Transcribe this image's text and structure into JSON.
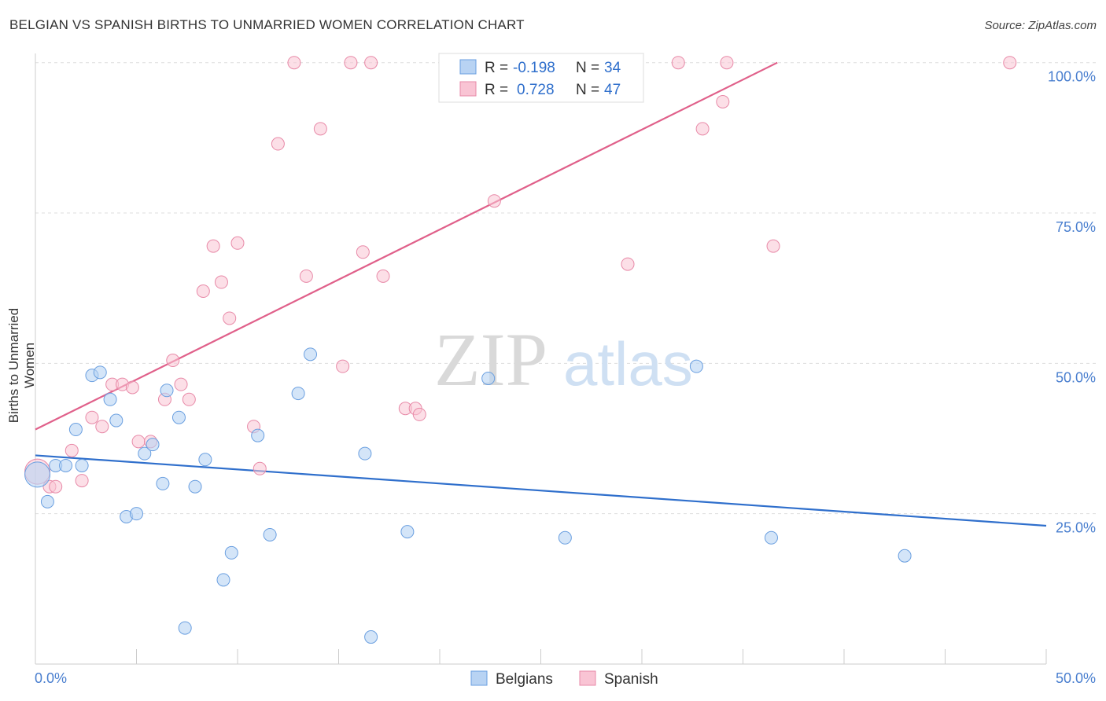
{
  "header": {
    "title": "BELGIAN VS SPANISH BIRTHS TO UNMARRIED WOMEN CORRELATION CHART",
    "source": "Source: ZipAtlas.com"
  },
  "watermark": {
    "zip": "ZIP",
    "atlas": "atlas"
  },
  "stats": [
    {
      "r_label": "R =",
      "r_value": "-0.198",
      "n_label": "N =",
      "n_value": "34"
    },
    {
      "r_label": "R =",
      "r_value": "0.728",
      "n_label": "N =",
      "n_value": "47"
    }
  ],
  "legend": {
    "belgians": "Belgians",
    "spanish": "Spanish"
  },
  "colors": {
    "belgians_fill": "#b8d3f3",
    "belgians_stroke": "#6a9fe0",
    "belgians_line": "#2f6fcc",
    "spanish_fill": "#f9c4d4",
    "spanish_stroke": "#e88aa8",
    "spanish_line": "#e0608a",
    "value_text": "#2f6fcc",
    "grid": "#dddddd"
  },
  "chart_data": {
    "type": "scatter",
    "title": "BELGIAN VS SPANISH BIRTHS TO UNMARRIED WOMEN CORRELATION CHART",
    "xlabel": "",
    "ylabel": "Births to Unmarried Women",
    "xlim": [
      0,
      50
    ],
    "ylim": [
      0,
      102
    ],
    "x_tick_labels": [
      "0.0%",
      "50.0%"
    ],
    "y_tick_labels": [
      "25.0%",
      "50.0%",
      "75.0%",
      "100.0%"
    ],
    "y_ticks": [
      25,
      50,
      75,
      100
    ],
    "grid": true,
    "legend_position": "bottom-center",
    "series": [
      {
        "name": "Belgians",
        "r": -0.198,
        "n": 34,
        "trend": [
          [
            0,
            34.7
          ],
          [
            50,
            23.0
          ]
        ],
        "points": [
          [
            0.1,
            31.5
          ],
          [
            0.6,
            27.0
          ],
          [
            1.0,
            33.0
          ],
          [
            1.5,
            33.0
          ],
          [
            2.0,
            39.0
          ],
          [
            2.3,
            33.0
          ],
          [
            2.8,
            48.0
          ],
          [
            3.2,
            48.5
          ],
          [
            3.7,
            44.0
          ],
          [
            4.0,
            40.5
          ],
          [
            4.5,
            24.5
          ],
          [
            5.0,
            25.0
          ],
          [
            5.4,
            35.0
          ],
          [
            5.8,
            36.5
          ],
          [
            6.3,
            30.0
          ],
          [
            6.5,
            45.5
          ],
          [
            7.1,
            41.0
          ],
          [
            7.4,
            6.0
          ],
          [
            7.9,
            29.5
          ],
          [
            8.4,
            34.0
          ],
          [
            9.3,
            14.0
          ],
          [
            9.7,
            18.5
          ],
          [
            11.0,
            38.0
          ],
          [
            11.6,
            21.5
          ],
          [
            13.0,
            45.0
          ],
          [
            13.6,
            51.5
          ],
          [
            16.3,
            35.0
          ],
          [
            16.6,
            4.5
          ],
          [
            18.4,
            22.0
          ],
          [
            22.4,
            47.5
          ],
          [
            26.2,
            21.0
          ],
          [
            32.7,
            49.5
          ],
          [
            36.4,
            21.0
          ],
          [
            43.0,
            18.0
          ]
        ]
      },
      {
        "name": "Spanish",
        "r": 0.728,
        "n": 47,
        "trend": [
          [
            0,
            39.0
          ],
          [
            36.7,
            100.0
          ]
        ],
        "points": [
          [
            0.1,
            32.0
          ],
          [
            0.7,
            29.5
          ],
          [
            1.0,
            29.5
          ],
          [
            1.8,
            35.5
          ],
          [
            2.3,
            30.5
          ],
          [
            2.8,
            41.0
          ],
          [
            3.3,
            39.5
          ],
          [
            3.8,
            46.5
          ],
          [
            4.3,
            46.5
          ],
          [
            4.8,
            46.0
          ],
          [
            5.1,
            37.0
          ],
          [
            5.7,
            37.0
          ],
          [
            6.4,
            44.0
          ],
          [
            6.8,
            50.5
          ],
          [
            7.2,
            46.5
          ],
          [
            7.6,
            44.0
          ],
          [
            8.3,
            62.0
          ],
          [
            8.8,
            69.5
          ],
          [
            9.2,
            63.5
          ],
          [
            9.6,
            57.5
          ],
          [
            10.0,
            70.0
          ],
          [
            10.8,
            39.5
          ],
          [
            11.1,
            32.5
          ],
          [
            12.0,
            86.5
          ],
          [
            12.8,
            100.0
          ],
          [
            13.4,
            64.5
          ],
          [
            14.1,
            89.0
          ],
          [
            15.2,
            49.5
          ],
          [
            15.6,
            100.0
          ],
          [
            16.2,
            68.5
          ],
          [
            16.6,
            100.0
          ],
          [
            17.2,
            64.5
          ],
          [
            18.3,
            42.5
          ],
          [
            18.8,
            42.5
          ],
          [
            19.0,
            41.5
          ],
          [
            22.7,
            77.0
          ],
          [
            24.9,
            100.0
          ],
          [
            25.5,
            100.0
          ],
          [
            26.0,
            100.0
          ],
          [
            29.3,
            66.5
          ],
          [
            29.7,
            100.0
          ],
          [
            31.8,
            100.0
          ],
          [
            33.0,
            89.0
          ],
          [
            34.0,
            93.5
          ],
          [
            34.2,
            100.0
          ],
          [
            36.5,
            69.5
          ],
          [
            48.2,
            100.0
          ]
        ]
      }
    ]
  }
}
